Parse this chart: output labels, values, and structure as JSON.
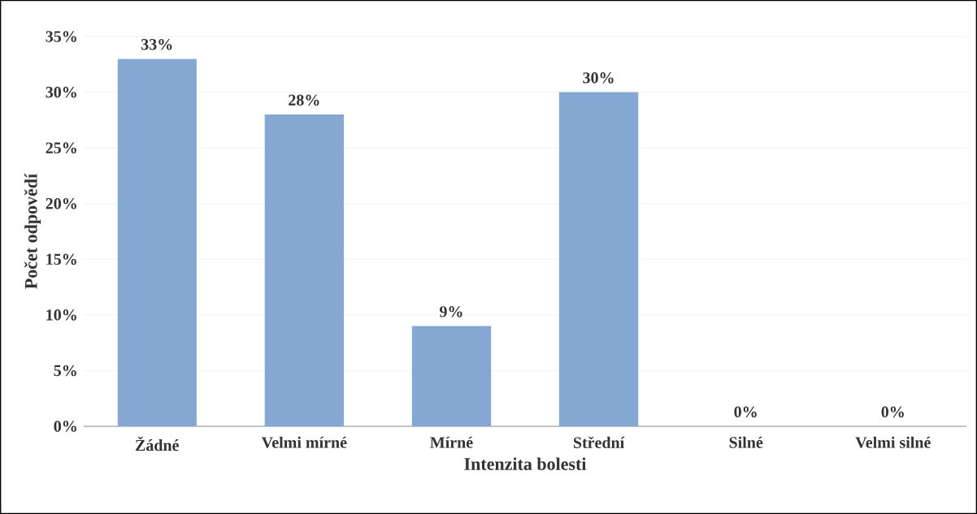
{
  "chart_data": {
    "type": "bar",
    "xlabel": "Intenzita bolesti",
    "ylabel": "Počet odpovědí",
    "categories": [
      "Žádné",
      "Velmi mírné",
      "Mírné",
      "Střední",
      "Silné",
      "Velmi silné"
    ],
    "values": [
      33,
      28,
      9,
      30,
      0,
      0
    ],
    "value_labels": [
      "33%",
      "28%",
      "9%",
      "30%",
      "0%",
      "0%"
    ],
    "color": "#84a8d1",
    "ylim": [
      0,
      35
    ],
    "yticks": [
      {
        "value": 0,
        "label": "0%"
      },
      {
        "value": 5,
        "label": "5%"
      },
      {
        "value": 10,
        "label": "10%"
      },
      {
        "value": 15,
        "label": "15%"
      },
      {
        "value": 20,
        "label": "20%"
      },
      {
        "value": 25,
        "label": "25%"
      },
      {
        "value": 30,
        "label": "30%"
      },
      {
        "value": 35,
        "label": "35%"
      }
    ],
    "grid": "y"
  }
}
